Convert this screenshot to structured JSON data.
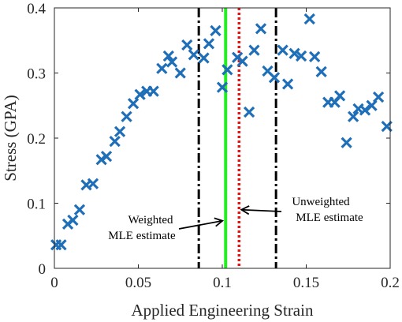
{
  "chart_data": {
    "type": "scatter",
    "xlabel": "Applied Engineering Strain",
    "ylabel": "Stress (GPA)",
    "xlim": [
      0,
      0.2
    ],
    "ylim": [
      0,
      0.4
    ],
    "xticks": [
      "0",
      "0.05",
      "0.1",
      "0.15",
      "0.2"
    ],
    "yticks": [
      "0",
      "0.1",
      "0.2",
      "0.3",
      "0.4"
    ],
    "grid": false,
    "marker": "x",
    "series": [
      {
        "color": "#1f6fb8",
        "points": [
          [
            0.001,
            0.036
          ],
          [
            0.004,
            0.036
          ],
          [
            0.008,
            0.068
          ],
          [
            0.011,
            0.074
          ],
          [
            0.015,
            0.09
          ],
          [
            0.019,
            0.128
          ],
          [
            0.023,
            0.13
          ],
          [
            0.028,
            0.167
          ],
          [
            0.031,
            0.172
          ],
          [
            0.036,
            0.195
          ],
          [
            0.039,
            0.21
          ],
          [
            0.043,
            0.233
          ],
          [
            0.047,
            0.253
          ],
          [
            0.051,
            0.267
          ],
          [
            0.055,
            0.272
          ],
          [
            0.059,
            0.272
          ],
          [
            0.064,
            0.307
          ],
          [
            0.068,
            0.326
          ],
          [
            0.07,
            0.317
          ],
          [
            0.075,
            0.3
          ],
          [
            0.079,
            0.343
          ],
          [
            0.083,
            0.328
          ],
          [
            0.089,
            0.323
          ],
          [
            0.092,
            0.345
          ],
          [
            0.096,
            0.365
          ],
          [
            0.1,
            0.278
          ],
          [
            0.103,
            0.305
          ],
          [
            0.109,
            0.324
          ],
          [
            0.112,
            0.318
          ],
          [
            0.116,
            0.24
          ],
          [
            0.119,
            0.335
          ],
          [
            0.123,
            0.368
          ],
          [
            0.127,
            0.303
          ],
          [
            0.131,
            0.293
          ],
          [
            0.136,
            0.335
          ],
          [
            0.139,
            0.283
          ],
          [
            0.143,
            0.33
          ],
          [
            0.147,
            0.326
          ],
          [
            0.152,
            0.383
          ],
          [
            0.155,
            0.325
          ],
          [
            0.159,
            0.302
          ],
          [
            0.163,
            0.255
          ],
          [
            0.167,
            0.255
          ],
          [
            0.17,
            0.265
          ],
          [
            0.174,
            0.193
          ],
          [
            0.178,
            0.233
          ],
          [
            0.181,
            0.245
          ],
          [
            0.185,
            0.243
          ],
          [
            0.189,
            0.25
          ],
          [
            0.193,
            0.263
          ],
          [
            0.198,
            0.218
          ]
        ]
      }
    ],
    "reference_lines": [
      {
        "x": 0.086,
        "color": "#000000",
        "style": "dashdot"
      },
      {
        "x": 0.102,
        "color": "#22ee22",
        "style": "solid"
      },
      {
        "x": 0.11,
        "color": "#ee1111",
        "style": "dotted"
      },
      {
        "x": 0.132,
        "color": "#000000",
        "style": "dashdot"
      }
    ],
    "annotations": [
      {
        "lines": [
          "Weighted",
          "MLE estimate"
        ],
        "target_x": 0.102,
        "target_y": 0.073
      },
      {
        "lines": [
          "Unweighted",
          "MLE estimate"
        ],
        "target_x": 0.11,
        "target_y": 0.09
      }
    ]
  }
}
